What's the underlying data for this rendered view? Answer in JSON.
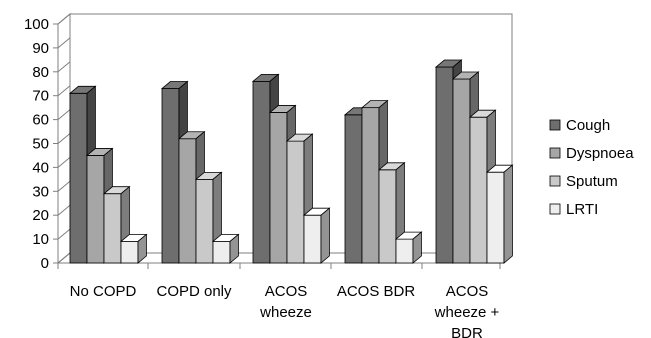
{
  "chart_data": {
    "type": "bar",
    "style": "3d-clustered-column",
    "title": "",
    "xlabel": "",
    "ylabel": "",
    "ylim": [
      0,
      100
    ],
    "yticks": [
      0,
      10,
      20,
      30,
      40,
      50,
      60,
      70,
      80,
      90,
      100
    ],
    "grid": false,
    "legend_position": "right",
    "categories": [
      [
        "No COPD"
      ],
      [
        "COPD only"
      ],
      [
        "ACOS",
        "wheeze"
      ],
      [
        "ACOS BDR"
      ],
      [
        "ACOS",
        "wheeze +",
        "BDR"
      ]
    ],
    "series": [
      {
        "name": "Cough",
        "color": "#6e6e6e",
        "values": [
          71,
          73,
          76,
          62,
          82
        ]
      },
      {
        "name": "Dyspnoea",
        "color": "#a6a6a6",
        "values": [
          45,
          52,
          63,
          65,
          77
        ]
      },
      {
        "name": "Sputum",
        "color": "#c9c9c9",
        "values": [
          29,
          35,
          51,
          39,
          61
        ]
      },
      {
        "name": "LRTI",
        "color": "#eeeeee",
        "values": [
          9,
          9,
          20,
          10,
          38
        ]
      }
    ]
  }
}
